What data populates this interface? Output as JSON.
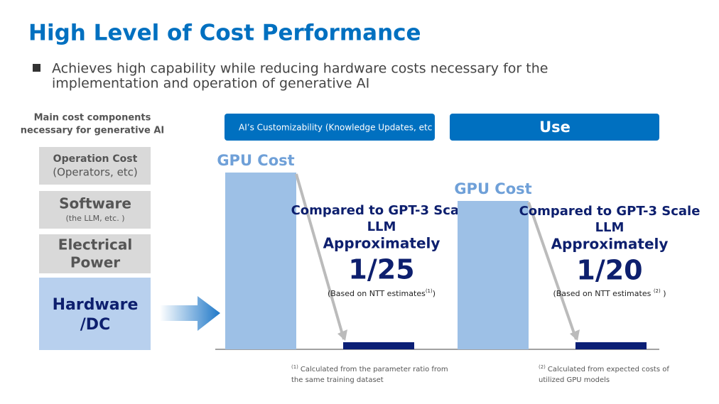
{
  "title": "High Level of Cost Performance",
  "bullet": [
    "Achieves high capability while reducing hardware costs necessary for the",
    "implementation and operation of generative AI"
  ],
  "components": {
    "heading": [
      "Main cost components",
      "necessary for generative AI"
    ],
    "items": [
      {
        "label": "Operation Cost",
        "sub": "(Operators, etc)"
      },
      {
        "label": "Software",
        "sub": "(the LLM, etc. )"
      },
      {
        "label": [
          "Electrical",
          "Power"
        ]
      },
      {
        "label": [
          "Hardware",
          "/DC"
        ]
      }
    ]
  },
  "headers": [
    "AI’s Customizability (Knowledge Updates, etc",
    "Use"
  ],
  "chart_data": [
    {
      "type": "bar",
      "title": "GPU Cost",
      "categories": [
        null,
        null
      ],
      "values": [
        249,
        10
      ],
      "colors": [
        "#9dc0e6",
        "#0b1f75"
      ],
      "ylim": [
        0,
        250
      ],
      "annotations": [
        "Compared to GPT-3 Scale",
        "LLM",
        "Approximately",
        "1/25"
      ],
      "note": [
        "(Based on NTT estimates",
        "(1)",
        ")"
      ],
      "footnote": {
        "ref": "(1)",
        "lines": [
          "Calculated from the parameter ratio from",
          "the same training dataset"
        ]
      }
    },
    {
      "type": "bar",
      "title": "GPU Cost",
      "categories": [
        null,
        null
      ],
      "values": [
        209,
        10
      ],
      "colors": [
        "#9dc0e6",
        "#0b1f75"
      ],
      "ylim": [
        0,
        250
      ],
      "annotations": [
        "Compared to GPT-3 Scale",
        "LLM",
        "Approximately",
        "1/20"
      ],
      "note": [
        "(Based on NTT estimates ",
        "(2)",
        " )"
      ],
      "footnote": {
        "ref": "(2)",
        "lines": [
          "Calculated from expected costs of",
          "utilized GPU models"
        ]
      }
    }
  ]
}
